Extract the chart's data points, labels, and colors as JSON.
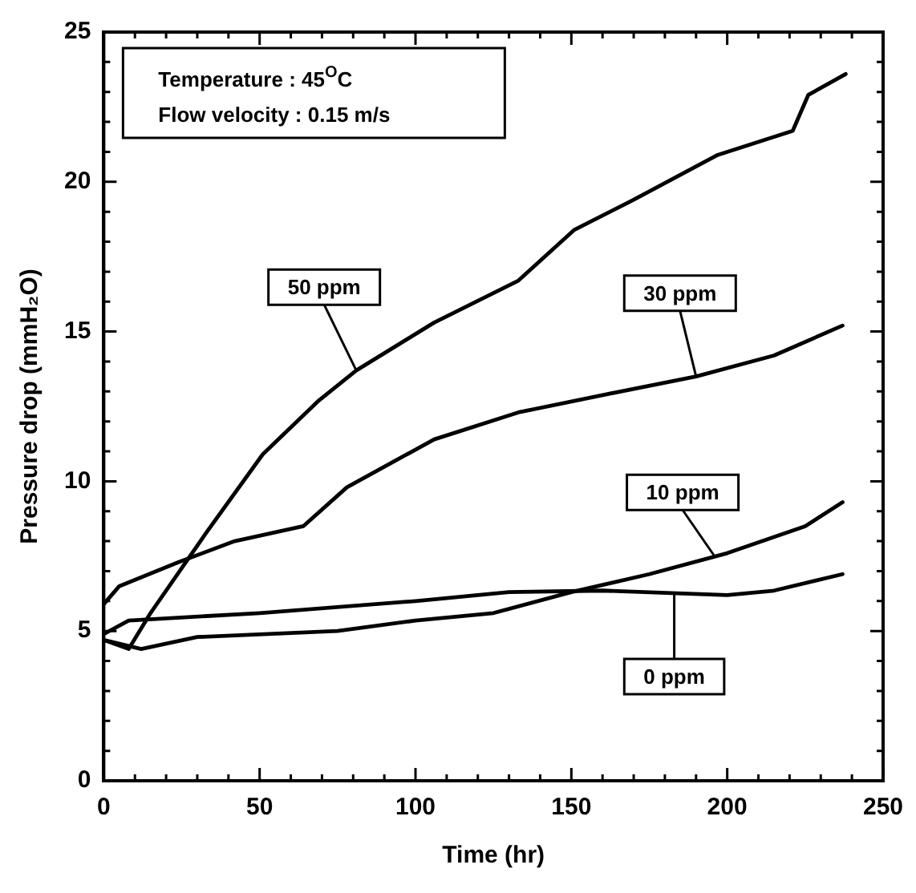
{
  "chart_data": {
    "type": "line",
    "xlabel": "Time (hr)",
    "ylabel": "Pressure drop (mmH₂O)",
    "xlim": [
      0,
      250
    ],
    "ylim": [
      0,
      25
    ],
    "xticks": [
      0,
      {
        "value": 10,
        "label": null
      },
      {
        "value": 20,
        "label": null
      },
      {
        "value": 30,
        "label": null
      },
      {
        "value": 40,
        "label": null
      },
      50,
      {
        "value": 60,
        "label": null
      },
      {
        "value": 70,
        "label": null
      },
      {
        "value": 80,
        "label": null
      },
      {
        "value": 90,
        "label": null
      },
      100,
      {
        "value": 110,
        "label": null
      },
      {
        "value": 120,
        "label": null
      },
      {
        "value": 130,
        "label": null
      },
      {
        "value": 140,
        "label": null
      },
      150,
      {
        "value": 160,
        "label": null
      },
      {
        "value": 170,
        "label": null
      },
      {
        "value": 180,
        "label": null
      },
      {
        "value": 190,
        "label": null
      },
      200,
      {
        "value": 210,
        "label": null
      },
      {
        "value": 220,
        "label": null
      },
      {
        "value": 230,
        "label": null
      },
      {
        "value": 240,
        "label": null
      },
      250
    ],
    "yticks": [
      0,
      {
        "value": 1,
        "label": null
      },
      {
        "value": 2,
        "label": null
      },
      {
        "value": 3,
        "label": null
      },
      {
        "value": 4,
        "label": null
      },
      5,
      {
        "value": 6,
        "label": null
      },
      {
        "value": 7,
        "label": null
      },
      {
        "value": 8,
        "label": null
      },
      {
        "value": 9,
        "label": null
      },
      10,
      {
        "value": 11,
        "label": null
      },
      {
        "value": 12,
        "label": null
      },
      {
        "value": 13,
        "label": null
      },
      {
        "value": 14,
        "label": null
      },
      15,
      {
        "value": 16,
        "label": null
      },
      {
        "value": 17,
        "label": null
      },
      {
        "value": 18,
        "label": null
      },
      {
        "value": 19,
        "label": null
      },
      20,
      {
        "value": 21,
        "label": null
      },
      {
        "value": 22,
        "label": null
      },
      {
        "value": 23,
        "label": null
      },
      {
        "value": 24,
        "label": null
      },
      25
    ],
    "grid": false,
    "legend": false,
    "marker": "none",
    "line_style": "solid",
    "series": [
      {
        "name": "50 ppm",
        "color": "#000000",
        "x": [
          0,
          8,
          15,
          33,
          51,
          69,
          81,
          106,
          133,
          151,
          170,
          197,
          221,
          226,
          238
        ],
        "values": [
          4.7,
          4.4,
          5.6,
          8.3,
          10.9,
          12.7,
          13.7,
          15.3,
          16.7,
          18.4,
          19.4,
          20.9,
          21.7,
          22.9,
          23.6
        ]
      },
      {
        "name": "30 ppm",
        "color": "#000000",
        "x": [
          0,
          5,
          24,
          42,
          64,
          78,
          106,
          133,
          161,
          190,
          215,
          237
        ],
        "values": [
          5.9,
          6.5,
          7.3,
          8.0,
          8.5,
          9.8,
          11.4,
          12.3,
          12.9,
          13.5,
          14.2,
          15.2
        ]
      },
      {
        "name": "10 ppm",
        "color": "#000000",
        "x": [
          0,
          12,
          30,
          75,
          100,
          125,
          150,
          175,
          200,
          225,
          237
        ],
        "values": [
          4.7,
          4.4,
          4.8,
          5.0,
          5.35,
          5.6,
          6.3,
          6.9,
          7.6,
          8.5,
          9.3
        ]
      },
      {
        "name": "0 ppm",
        "color": "#000000",
        "x": [
          0,
          8,
          50,
          100,
          130,
          160,
          200,
          215,
          237
        ],
        "values": [
          4.9,
          5.35,
          5.6,
          6.0,
          6.3,
          6.35,
          6.2,
          6.35,
          6.9
        ]
      }
    ],
    "annotations": [
      "Temperature : 45$^{O}$C",
      "Flow velocity : 0.15 m/s"
    ]
  }
}
